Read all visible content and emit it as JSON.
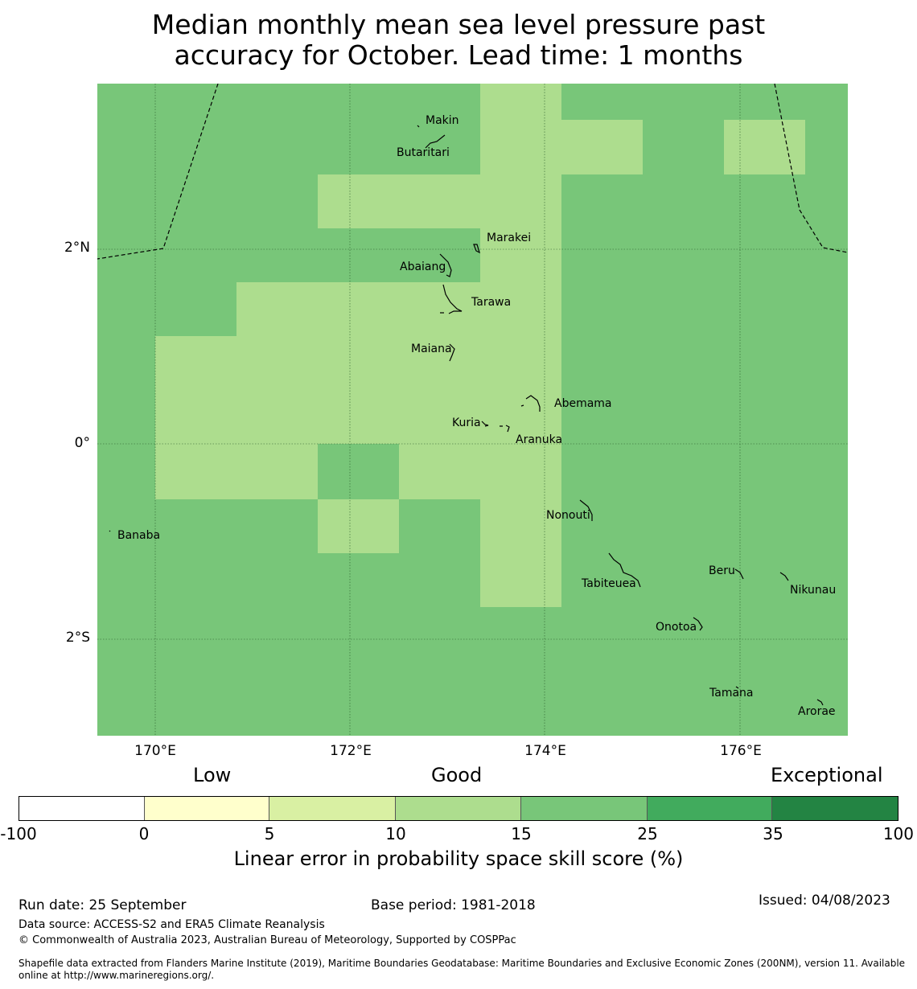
{
  "title": {
    "line1": "Median monthly mean sea level pressure past",
    "line2": "accuracy for October. Lead time: 1 months"
  },
  "map": {
    "lat_labels": [
      "2°N",
      "0°",
      "2°S"
    ],
    "lon_labels": [
      "170°E",
      "172°E",
      "174°E",
      "176°E"
    ],
    "places": [
      "Makin",
      "Butaritari",
      "Marakei",
      "Abaiang",
      "Tarawa",
      "Maiana",
      "Abemama",
      "Kuria",
      "Aranuka",
      "Banaba",
      "Nonouti",
      "Beru",
      "Nikunau",
      "Tabiteuea",
      "Onotoa",
      "Tamana",
      "Arorae"
    ],
    "skill_categories": {
      "base": "15-25",
      "highlighted": "10-15"
    },
    "colors": {
      "base": "#78c679",
      "highlight": "#addd8e"
    }
  },
  "legend": {
    "categories": [
      "Low",
      "Good",
      "Exceptional"
    ],
    "ticks": [
      "-100",
      "0",
      "5",
      "10",
      "15",
      "25",
      "35",
      "100"
    ],
    "colors": [
      "#ffffff",
      "#ffffcc",
      "#d9f0a3",
      "#addd8e",
      "#78c679",
      "#41ab5d",
      "#238443"
    ],
    "label": "Linear error in probability space skill score (%)"
  },
  "footer": {
    "run_date": "Run date: 25 September",
    "base_period": "Base period: 1981-2018",
    "issued": "Issued: 04/08/2023",
    "data_source": "Data source: ACCESS-S2 and ERA5 Climate Reanalysis",
    "copyright": "© Commonwealth of Australia 2023, Australian Bureau of Meteorology, Supported by COSPPac",
    "shapefile_1": "Shapefile data extracted from Flanders Marine Institute (2019), Maritime Boundaries Geodatabase: Maritime Boundaries and Exclusive Economic Zones (200NM), version 11. Available",
    "shapefile_2": "online at http://www.marineregions.org/."
  }
}
